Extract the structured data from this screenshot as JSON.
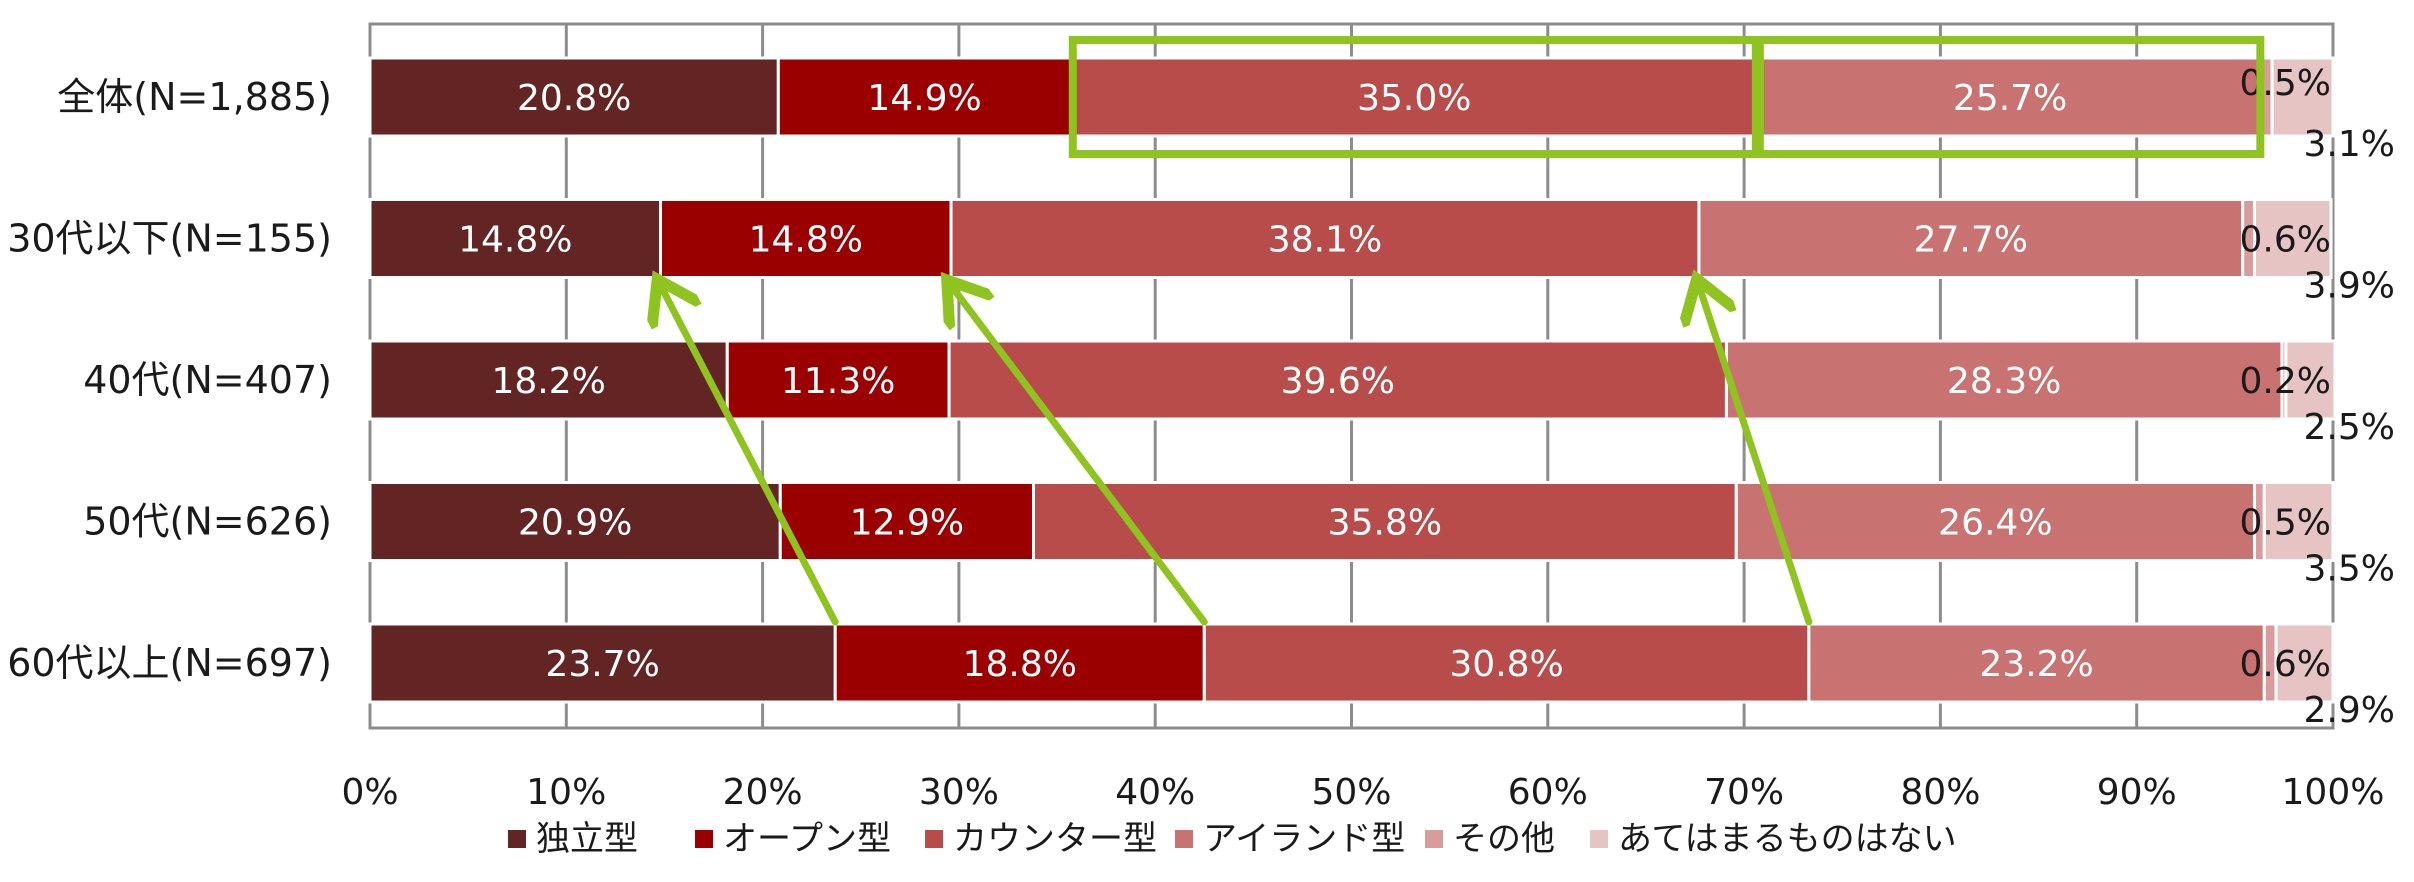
{
  "chart_data": {
    "type": "bar",
    "orientation": "horizontal",
    "stacked": true,
    "title": "",
    "xlabel": "",
    "ylabel": "",
    "xlim": [
      0,
      100
    ],
    "x_ticks": [
      "0%",
      "10%",
      "20%",
      "30%",
      "40%",
      "50%",
      "60%",
      "70%",
      "80%",
      "90%",
      "100%"
    ],
    "grid": true,
    "legend_position": "bottom",
    "categories": [
      "全体(N=1,885)",
      "30代以下(N=155)",
      "40代(N=407)",
      "50代(N=626)",
      "60代以上(N=697)"
    ],
    "series": [
      {
        "name": "独立型",
        "color": "#632523",
        "values": [
          20.8,
          14.8,
          18.2,
          20.9,
          23.7
        ],
        "labels": [
          "20.8%",
          "14.8%",
          "18.2%",
          "20.9%",
          "23.7%"
        ]
      },
      {
        "name": "オープン型",
        "color": "#9b0000",
        "values": [
          14.9,
          14.8,
          11.3,
          12.9,
          18.8
        ],
        "labels": [
          "14.9%",
          "14.8%",
          "11.3%",
          "12.9%",
          "18.8%"
        ]
      },
      {
        "name": "カウンター型",
        "color": "#b84c4a",
        "values": [
          35.0,
          38.1,
          39.6,
          35.8,
          30.8
        ],
        "labels": [
          "35.0%",
          "38.1%",
          "39.6%",
          "35.8%",
          "30.8%"
        ]
      },
      {
        "name": "アイランド型",
        "color": "#c87272",
        "values": [
          25.7,
          27.7,
          28.3,
          26.4,
          23.2
        ],
        "labels": [
          "25.7%",
          "27.7%",
          "28.3%",
          "26.4%",
          "23.2%"
        ]
      },
      {
        "name": "その他",
        "color": "#d99c9c",
        "values": [
          0.5,
          0.6,
          0.2,
          0.5,
          0.6
        ],
        "labels": [
          "0.5%",
          "0.6%",
          "0.2%",
          "0.5%",
          "0.6%"
        ]
      },
      {
        "name": "あてはまるものはない",
        "color": "#e6c4c4",
        "values": [
          3.1,
          3.9,
          2.5,
          3.5,
          2.9
        ],
        "labels": [
          "3.1%",
          "3.9%",
          "2.5%",
          "3.5%",
          "2.9%"
        ]
      }
    ],
    "annotations": {
      "highlight_boxes": [
        {
          "category_index": 0,
          "series_index": 2,
          "color": "#8fc31f"
        },
        {
          "category_index": 0,
          "series_index": 3,
          "color": "#8fc31f"
        }
      ],
      "arrows": [
        {
          "from": {
            "category_index": 4,
            "x": 23.7
          },
          "to": {
            "category_index": 1,
            "x": 14.8
          },
          "color": "#8fc31f"
        },
        {
          "from": {
            "category_index": 4,
            "x": 42.5
          },
          "to": {
            "category_index": 1,
            "x": 29.6
          },
          "color": "#8fc31f"
        },
        {
          "from": {
            "category_index": 4,
            "x": 73.3
          },
          "to": {
            "category_index": 1,
            "x": 67.7
          },
          "color": "#8fc31f"
        }
      ]
    }
  }
}
